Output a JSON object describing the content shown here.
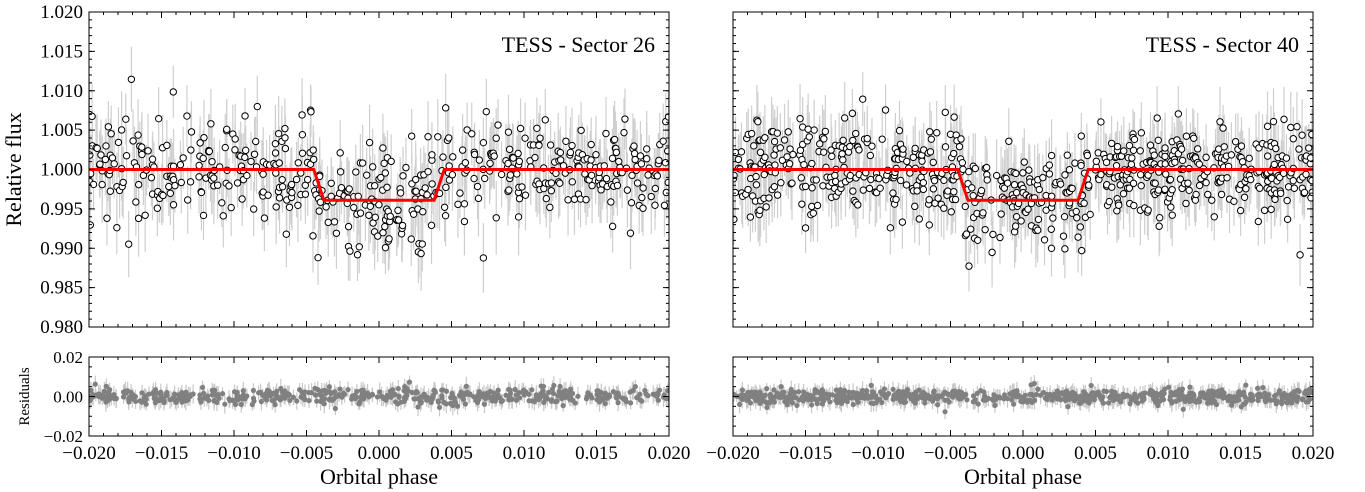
{
  "chart_data": [
    {
      "type": "scatter",
      "panel": "top-left",
      "title": "TESS - Sector 26",
      "ylabel": "Relative flux",
      "xlabel": "",
      "xlim": [
        -0.02,
        0.02
      ],
      "ylim": [
        0.98,
        1.02
      ],
      "x_ticks": [
        "",
        "",
        "",
        "",
        "",
        "",
        "",
        "",
        ""
      ],
      "y_ticks": [
        "0.980",
        "0.985",
        "0.990",
        "0.995",
        "1.000",
        "1.005",
        "1.010",
        "1.015",
        "1.020"
      ],
      "data_points": {
        "n": 520,
        "x_range": [
          -0.02,
          0.02
        ],
        "baseline": 1.0,
        "scatter": 0.0038,
        "error": 0.0038,
        "depth": 0.0039
      },
      "model": {
        "ingress": -0.0045,
        "egress": 0.0045,
        "duration_edge": 0.0007,
        "depth": 0.0039,
        "color": "#ff0000"
      }
    },
    {
      "type": "scatter",
      "panel": "top-right",
      "title": "TESS - Sector 40",
      "ylabel": "",
      "xlabel": "",
      "xlim": [
        -0.02,
        0.02
      ],
      "ylim": [
        0.98,
        1.02
      ],
      "x_ticks": [
        "",
        "",
        "",
        "",
        "",
        "",
        "",
        "",
        ""
      ],
      "y_ticks": [
        "",
        "",
        "",
        "",
        "",
        "",
        "",
        "",
        ""
      ],
      "data_points": {
        "n": 700,
        "x_range": [
          -0.02,
          0.02
        ],
        "baseline": 1.0,
        "scatter": 0.0036,
        "error": 0.0036,
        "depth": 0.0039
      },
      "model": {
        "ingress": -0.0045,
        "egress": 0.0045,
        "duration_edge": 0.0007,
        "depth": 0.0039,
        "color": "#ff0000"
      }
    },
    {
      "type": "scatter",
      "panel": "bottom-left",
      "title": "",
      "ylabel": "Residuals",
      "xlabel": "Orbital phase",
      "xlim": [
        -0.02,
        0.02
      ],
      "ylim": [
        -0.02,
        0.02
      ],
      "x_ticks": [
        "−0.020",
        "−0.015",
        "−0.010",
        "−0.005",
        "0.000",
        "0.005",
        "0.010",
        "0.015",
        "0.020"
      ],
      "y_ticks": [
        "−0.02",
        "0.00",
        "0.02"
      ],
      "data_points": {
        "n": 520,
        "x_range": [
          -0.02,
          0.02
        ],
        "scatter": 0.0038,
        "error": 0.0038,
        "color": "#808080"
      }
    },
    {
      "type": "scatter",
      "panel": "bottom-right",
      "title": "",
      "ylabel": "",
      "xlabel": "Orbital phase",
      "xlim": [
        -0.02,
        0.02
      ],
      "ylim": [
        -0.02,
        0.02
      ],
      "x_ticks": [
        "−0.020",
        "−0.015",
        "−0.010",
        "−0.005",
        "0.000",
        "0.005",
        "0.010",
        "0.015",
        "0.020"
      ],
      "y_ticks": [
        "",
        "",
        ""
      ],
      "data_points": {
        "n": 700,
        "x_range": [
          -0.02,
          0.02
        ],
        "scatter": 0.0036,
        "error": 0.0036,
        "color": "#808080"
      }
    }
  ]
}
